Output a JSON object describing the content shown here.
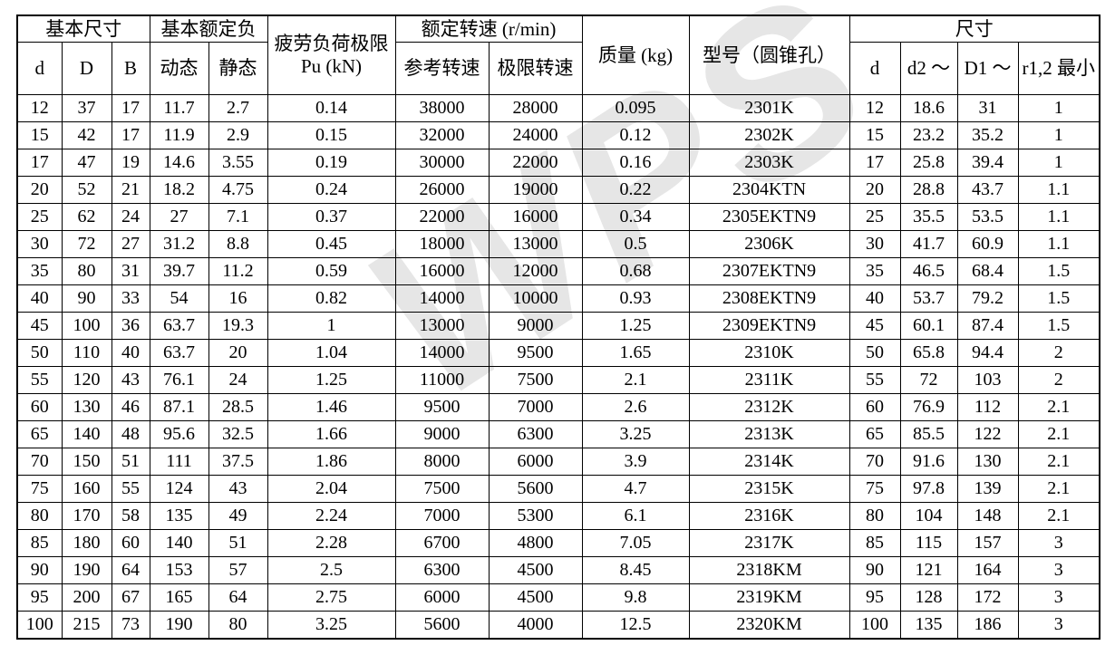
{
  "watermark": {
    "text": "WPS",
    "color": "#e6e6e6"
  },
  "table": {
    "groups": {
      "basic_dimensions": "基本尺寸",
      "basic_rated_load": "基本额定负",
      "fatigue_load_limit": "疲劳负荷极限 Pu (kN)",
      "rated_speed": "额定转速 (r/min)",
      "mass": "质量 (kg)",
      "model": "型号（圆锥孔）",
      "dimensions": "尺寸"
    },
    "subheaders": {
      "d": "d",
      "D": "D",
      "B": "B",
      "dynamic": "动态",
      "static": "静态",
      "reference_speed": "参考转速",
      "limit_speed": "极限转速",
      "d_size": "d",
      "d2": "d2 ～",
      "D1": "D1 ～",
      "r12_min": "r1,2 最小"
    },
    "rows": [
      [
        "12",
        "37",
        "17",
        "11.7",
        "2.7",
        "0.14",
        "38000",
        "28000",
        "0.095",
        "2301K",
        "12",
        "18.6",
        "31",
        "1"
      ],
      [
        "15",
        "42",
        "17",
        "11.9",
        "2.9",
        "0.15",
        "32000",
        "24000",
        "0.12",
        "2302K",
        "15",
        "23.2",
        "35.2",
        "1"
      ],
      [
        "17",
        "47",
        "19",
        "14.6",
        "3.55",
        "0.19",
        "30000",
        "22000",
        "0.16",
        "2303K",
        "17",
        "25.8",
        "39.4",
        "1"
      ],
      [
        "20",
        "52",
        "21",
        "18.2",
        "4.75",
        "0.24",
        "26000",
        "19000",
        "0.22",
        "2304KTN",
        "20",
        "28.8",
        "43.7",
        "1.1"
      ],
      [
        "25",
        "62",
        "24",
        "27",
        "7.1",
        "0.37",
        "22000",
        "16000",
        "0.34",
        "2305EKTN9",
        "25",
        "35.5",
        "53.5",
        "1.1"
      ],
      [
        "30",
        "72",
        "27",
        "31.2",
        "8.8",
        "0.45",
        "18000",
        "13000",
        "0.5",
        "2306K",
        "30",
        "41.7",
        "60.9",
        "1.1"
      ],
      [
        "35",
        "80",
        "31",
        "39.7",
        "11.2",
        "0.59",
        "16000",
        "12000",
        "0.68",
        "2307EKTN9",
        "35",
        "46.5",
        "68.4",
        "1.5"
      ],
      [
        "40",
        "90",
        "33",
        "54",
        "16",
        "0.82",
        "14000",
        "10000",
        "0.93",
        "2308EKTN9",
        "40",
        "53.7",
        "79.2",
        "1.5"
      ],
      [
        "45",
        "100",
        "36",
        "63.7",
        "19.3",
        "1",
        "13000",
        "9000",
        "1.25",
        "2309EKTN9",
        "45",
        "60.1",
        "87.4",
        "1.5"
      ],
      [
        "50",
        "110",
        "40",
        "63.7",
        "20",
        "1.04",
        "14000",
        "9500",
        "1.65",
        "2310K",
        "50",
        "65.8",
        "94.4",
        "2"
      ],
      [
        "55",
        "120",
        "43",
        "76.1",
        "24",
        "1.25",
        "11000",
        "7500",
        "2.1",
        "2311K",
        "55",
        "72",
        "103",
        "2"
      ],
      [
        "60",
        "130",
        "46",
        "87.1",
        "28.5",
        "1.46",
        "9500",
        "7000",
        "2.6",
        "2312K",
        "60",
        "76.9",
        "112",
        "2.1"
      ],
      [
        "65",
        "140",
        "48",
        "95.6",
        "32.5",
        "1.66",
        "9000",
        "6300",
        "3.25",
        "2313K",
        "65",
        "85.5",
        "122",
        "2.1"
      ],
      [
        "70",
        "150",
        "51",
        "111",
        "37.5",
        "1.86",
        "8000",
        "6000",
        "3.9",
        "2314K",
        "70",
        "91.6",
        "130",
        "2.1"
      ],
      [
        "75",
        "160",
        "55",
        "124",
        "43",
        "2.04",
        "7500",
        "5600",
        "4.7",
        "2315K",
        "75",
        "97.8",
        "139",
        "2.1"
      ],
      [
        "80",
        "170",
        "58",
        "135",
        "49",
        "2.24",
        "7000",
        "5300",
        "6.1",
        "2316K",
        "80",
        "104",
        "148",
        "2.1"
      ],
      [
        "85",
        "180",
        "60",
        "140",
        "51",
        "2.28",
        "6700",
        "4800",
        "7.05",
        "2317K",
        "85",
        "115",
        "157",
        "3"
      ],
      [
        "90",
        "190",
        "64",
        "153",
        "57",
        "2.5",
        "6300",
        "4500",
        "8.45",
        "2318KM",
        "90",
        "121",
        "164",
        "3"
      ],
      [
        "95",
        "200",
        "67",
        "165",
        "64",
        "2.75",
        "6000",
        "4500",
        "9.8",
        "2319KM",
        "95",
        "128",
        "172",
        "3"
      ],
      [
        "100",
        "215",
        "73",
        "190",
        "80",
        "3.25",
        "5600",
        "4000",
        "12.5",
        "2320KM",
        "100",
        "135",
        "186",
        "3"
      ]
    ]
  }
}
